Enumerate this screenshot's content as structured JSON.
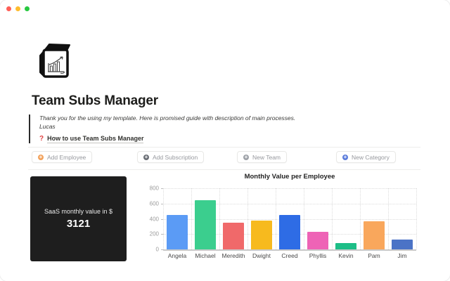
{
  "window": {
    "controls": {
      "close_color": "#FF5F57",
      "minimize_color": "#FEBC2E",
      "zoom_color": "#28C840"
    }
  },
  "page": {
    "icon": "cube-bar-chart-icon",
    "title": "Team Subs Manager",
    "quote": {
      "line1": "Thank you for the using my template. Here is promised guide with description of main processes.",
      "line2": "Lucas"
    },
    "guide_link": {
      "icon": "question-mark-icon",
      "glyph": "?",
      "glyph_color": "#E03E3E",
      "label": "How to use Team Subs Manager"
    }
  },
  "actions": [
    {
      "label": "Add Employee",
      "icon": "plus-circle-icon",
      "glyph": "+",
      "icon_color": "#F2A25C"
    },
    {
      "label": "Add Subscription",
      "icon": "plus-circle-icon",
      "glyph": "+",
      "icon_color": "#6B6F76"
    },
    {
      "label": "New Team",
      "icon": "plus-circle-icon",
      "glyph": "+",
      "icon_color": "#9EA2A8"
    },
    {
      "label": "New Category",
      "icon": "plus-circle-icon",
      "glyph": "+",
      "icon_color": "#5B7CDB"
    }
  ],
  "stat_card": {
    "label": "SaaS monthly value in $",
    "value": "3121",
    "bg_color": "#1E1E1E"
  },
  "chart_data": {
    "type": "bar",
    "title": "Monthly Value per Employee",
    "categories": [
      "Angela",
      "Michael",
      "Meredith",
      "Dwight",
      "Creed",
      "Phyllis",
      "Kevin",
      "Pam",
      "Jim"
    ],
    "values": [
      450,
      640,
      350,
      380,
      455,
      230,
      80,
      370,
      130
    ],
    "colors": [
      "#5B9BF5",
      "#3BCE8E",
      "#F0696A",
      "#F7BA1E",
      "#2E6CE5",
      "#EE63B6",
      "#1DBE87",
      "#F9A75C",
      "#4B73C6"
    ],
    "xlabel": "",
    "ylabel": "",
    "ylim": [
      0,
      800
    ],
    "yticks": [
      0,
      200,
      400,
      600,
      800
    ],
    "grid": "dotted",
    "legend": "none"
  }
}
